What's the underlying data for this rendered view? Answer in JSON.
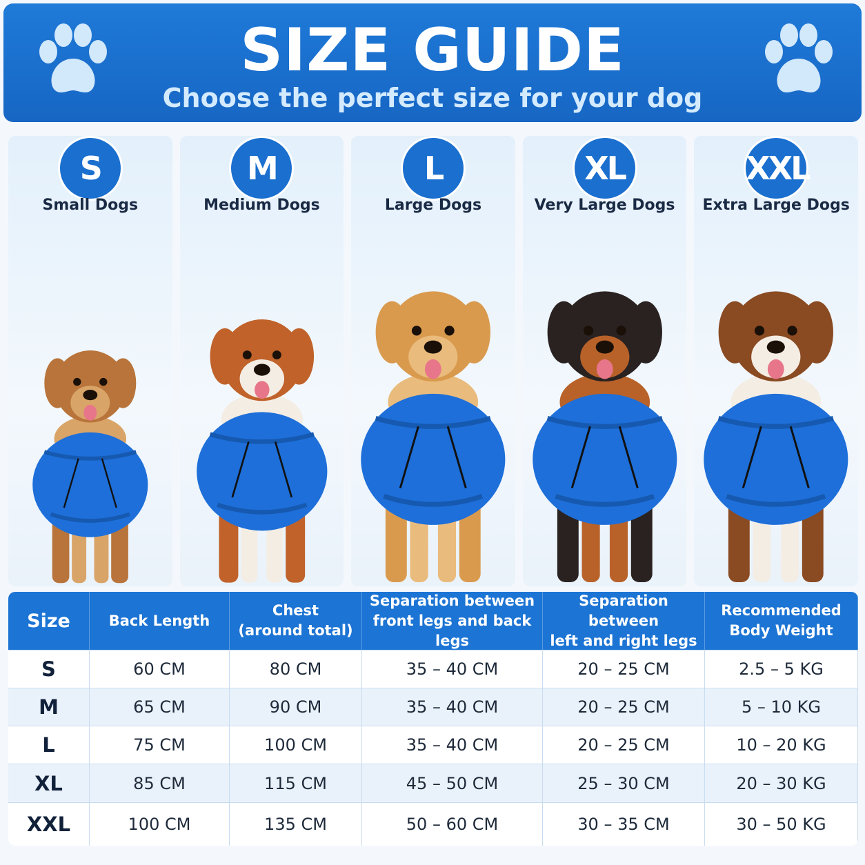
{
  "header": {
    "title": "SIZE GUIDE",
    "subtitle": "Choose the perfect size for your dog"
  },
  "sizes": [
    {
      "badge": "S",
      "label": "Small Dogs"
    },
    {
      "badge": "M",
      "label": "Medium Dogs"
    },
    {
      "badge": "L",
      "label": "Large Dogs"
    },
    {
      "badge": "XL",
      "label": "Very Large Dogs"
    },
    {
      "badge": "XXL",
      "label": "Extra Large Dogs"
    }
  ],
  "table": {
    "columns": [
      "Size",
      "Back Length",
      "Chest\n(around total)",
      "Separation between\nfront legs and back legs",
      "Separation between\nleft and right legs",
      "Recommended\nBody Weight"
    ],
    "rows": [
      [
        "S",
        "60 CM",
        "80 CM",
        "35 – 40 CM",
        "20 – 25 CM",
        "2.5 – 5 KG"
      ],
      [
        "M",
        "65 CM",
        "90 CM",
        "35 – 40 CM",
        "20 – 25 CM",
        "5 – 10 KG"
      ],
      [
        "L",
        "75 CM",
        "100 CM",
        "35 – 40 CM",
        "20 – 25 CM",
        "10 – 20 KG"
      ],
      [
        "XL",
        "85 CM",
        "115 CM",
        "45 – 50 CM",
        "25 – 30 CM",
        "20 – 30 KG"
      ],
      [
        "XXL",
        "100 CM",
        "135 CM",
        "50 – 60 CM",
        "30 – 35 CM",
        "30 – 50 KG"
      ]
    ]
  }
}
